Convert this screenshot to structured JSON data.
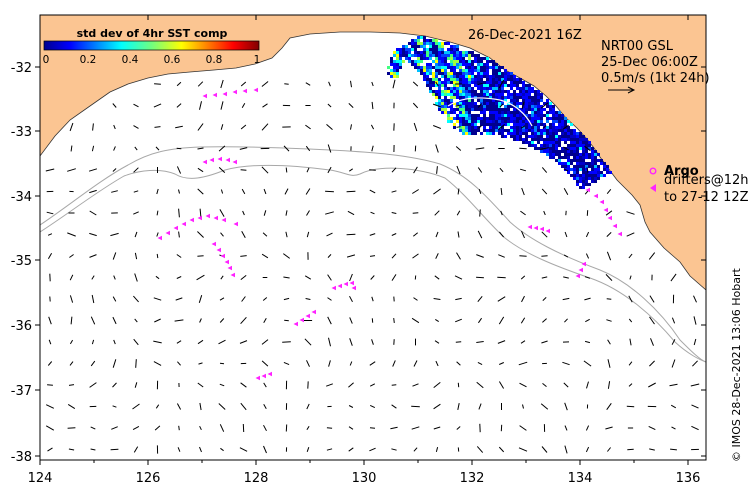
{
  "map": {
    "date_label": "26-Dec-2021 16Z",
    "product_label": "NRT00 GSL",
    "vector_time": "25-Dec 06:00Z",
    "vector_scale": "0.5m/s (1kt 24h)",
    "credit": "© IMOS 28-Dec-2021 13:06 Hobart"
  },
  "colorbar": {
    "title": "std dev of 4hr SST comp",
    "ticks": [
      "0",
      "0.2",
      "0.4",
      "0.6",
      "0.8",
      "1"
    ]
  },
  "legend": {
    "argo": "Argo",
    "drifters_line1": "drifters@12h",
    "drifters_line2": "to 27-12 12Z"
  },
  "axes": {
    "x_ticks": [
      "124",
      "126",
      "128",
      "130",
      "132",
      "134",
      "136"
    ],
    "y_ticks": [
      "-32",
      "-33",
      "-34",
      "-35",
      "-36",
      "-37",
      "-38"
    ]
  },
  "colors": {
    "land": "#fbc592",
    "drifter": "#ff22ff",
    "argo": "#ff22ff",
    "isobath": "#a8a8a8"
  }
}
